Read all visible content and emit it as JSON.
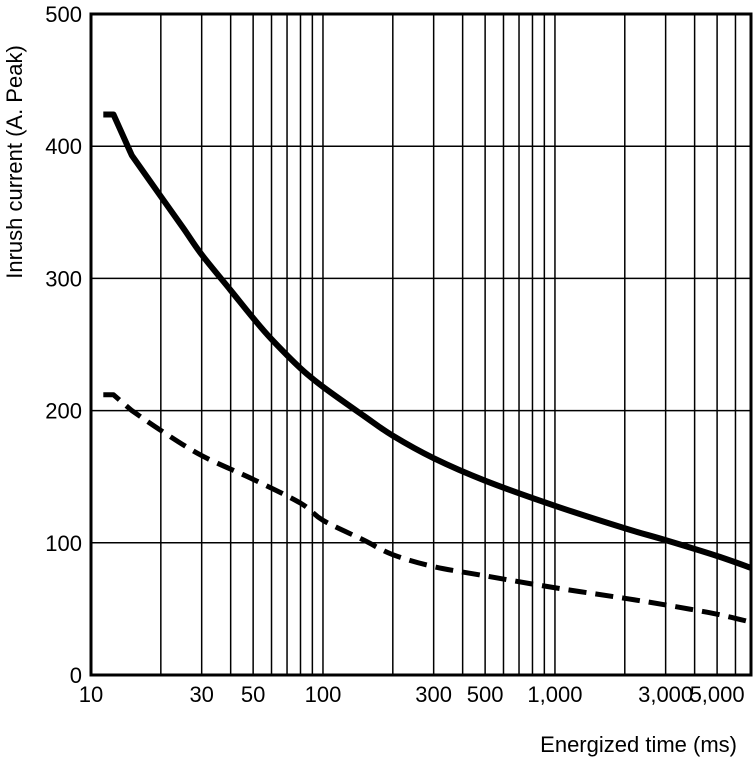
{
  "chart_data": {
    "type": "line",
    "title": "",
    "xlabel": "Energized time (ms)",
    "ylabel": "Inrush current (A. Peak)",
    "x_scale": "log",
    "xlim": [
      10,
      7000
    ],
    "ylim": [
      0,
      500
    ],
    "x_ticks": [
      {
        "value": 10,
        "label": "10"
      },
      {
        "value": 30,
        "label": "30"
      },
      {
        "value": 50,
        "label": "50"
      },
      {
        "value": 100,
        "label": "100"
      },
      {
        "value": 300,
        "label": "300"
      },
      {
        "value": 500,
        "label": "500"
      },
      {
        "value": 1000,
        "label": "1,000"
      },
      {
        "value": 3000,
        "label": "3,000"
      },
      {
        "value": 5000,
        "label": "5,000"
      }
    ],
    "y_ticks": [
      {
        "value": 0,
        "label": "0"
      },
      {
        "value": 100,
        "label": "100"
      },
      {
        "value": 200,
        "label": "200"
      },
      {
        "value": 300,
        "label": "300"
      },
      {
        "value": 400,
        "label": "400"
      },
      {
        "value": 500,
        "label": "500"
      }
    ],
    "grid": true,
    "series": [
      {
        "style": "solid",
        "color": "#000000",
        "x": [
          10,
          12.5,
          15,
          20,
          25,
          30,
          40,
          50,
          60,
          80,
          100,
          150,
          200,
          300,
          500,
          1000,
          2000,
          3000,
          5000,
          7000
        ],
        "y": [
          424,
          424,
          393,
          362,
          338,
          318,
          291,
          270,
          254,
          232,
          218,
          196,
          181,
          164,
          147,
          128,
          111,
          102,
          90,
          81
        ]
      },
      {
        "style": "dashed",
        "color": "#000000",
        "x": [
          10,
          12.5,
          15,
          20,
          30,
          50,
          80,
          100,
          150,
          200,
          300,
          500,
          1000,
          2000,
          3000,
          5000,
          7000
        ],
        "y": [
          212,
          212,
          200,
          185,
          166,
          148,
          130,
          117,
          102,
          91,
          82,
          75,
          66,
          58,
          53,
          46,
          40
        ]
      }
    ]
  }
}
